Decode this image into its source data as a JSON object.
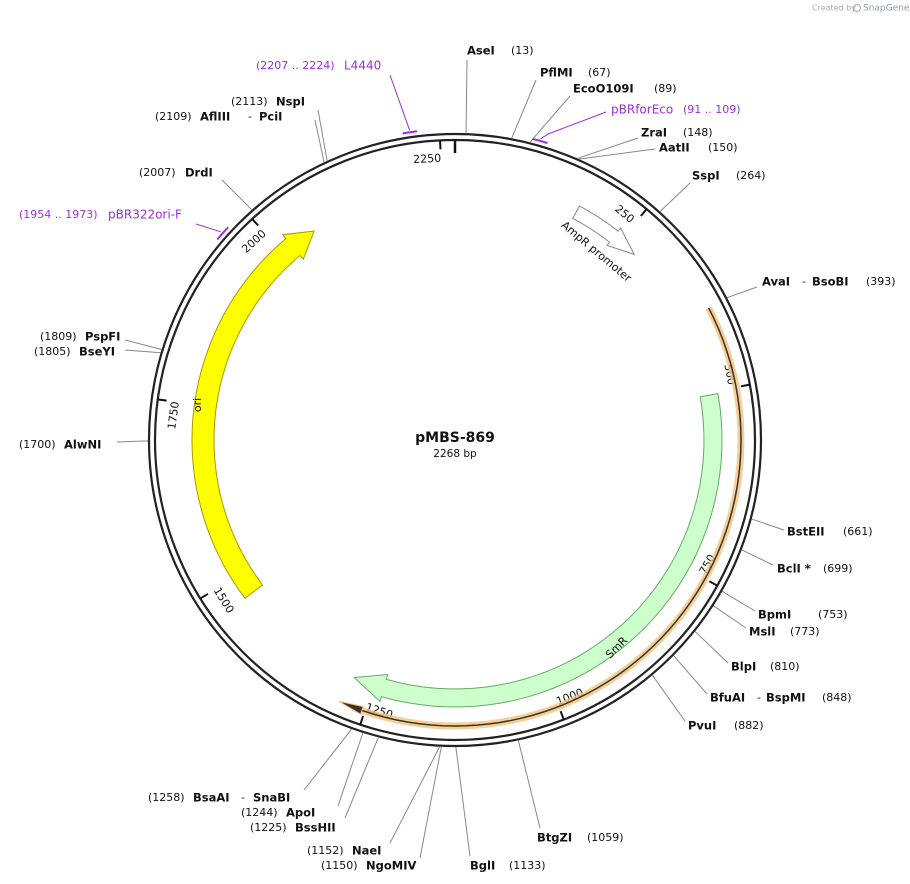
{
  "credit": {
    "prefix": "Created by",
    "brand": "SnapGene"
  },
  "plasmid": {
    "name": "pMBS-869",
    "length": "2268 bp"
  },
  "separator": "-",
  "ticks": [
    "250",
    "500",
    "750",
    "1000",
    "1250",
    "1500",
    "1750",
    "2000",
    "2250"
  ],
  "sites": [
    {
      "names": [
        "AseI"
      ],
      "location": "(13)"
    },
    {
      "names": [
        "PflMI"
      ],
      "location": "(67)"
    },
    {
      "names": [
        "EcoO109I"
      ],
      "location": "(89)"
    },
    {
      "names": [
        "ZraI"
      ],
      "location": "(148)"
    },
    {
      "names": [
        "AatII"
      ],
      "location": "(150)"
    },
    {
      "names": [
        "SspI"
      ],
      "location": "(264)"
    },
    {
      "names": [
        "AvaI",
        "BsoBI"
      ],
      "location": "(393)"
    },
    {
      "names": [
        "BstEII"
      ],
      "location": "(661)"
    },
    {
      "names": [
        "BclI *"
      ],
      "location": "(699)"
    },
    {
      "names": [
        "BpmI"
      ],
      "location": "(753)"
    },
    {
      "names": [
        "MslI"
      ],
      "location": "(773)"
    },
    {
      "names": [
        "BlpI"
      ],
      "location": "(810)"
    },
    {
      "names": [
        "BfuAI",
        "BspMI"
      ],
      "location": "(848)"
    },
    {
      "names": [
        "PvuI"
      ],
      "location": "(882)"
    },
    {
      "names": [
        "BtgZI"
      ],
      "location": "(1059)"
    },
    {
      "names": [
        "BglI"
      ],
      "location": "(1133)"
    },
    {
      "names": [
        "NgoMIV"
      ],
      "location": "(1150)"
    },
    {
      "names": [
        "NaeI"
      ],
      "location": "(1152)"
    },
    {
      "names": [
        "BssHII"
      ],
      "location": "(1225)"
    },
    {
      "names": [
        "ApoI"
      ],
      "location": "(1244)"
    },
    {
      "names": [
        "BsaAI",
        "SnaBI"
      ],
      "location": "(1258)"
    },
    {
      "names": [
        "AlwNI"
      ],
      "location": "(1700)"
    },
    {
      "names": [
        "BseYI"
      ],
      "location": "(1805)"
    },
    {
      "names": [
        "PspFI"
      ],
      "location": "(1809)"
    },
    {
      "names": [
        "DrdI"
      ],
      "location": "(2007)"
    },
    {
      "names": [
        "AflIII",
        "PciI"
      ],
      "location": "(2109)"
    },
    {
      "names": [
        "NspI"
      ],
      "location": "(2113)"
    }
  ],
  "primers": [
    {
      "name": "L4440",
      "location": "(2207 .. 2224)"
    },
    {
      "name": "pBRforEco",
      "location": "(91 .. 109)"
    },
    {
      "name": "pBR322ori-F",
      "location": "(1954 .. 1973)"
    }
  ],
  "features": [
    {
      "name": "AmpR promoter"
    },
    {
      "name": "SmR"
    },
    {
      "name": "ori"
    }
  ]
}
